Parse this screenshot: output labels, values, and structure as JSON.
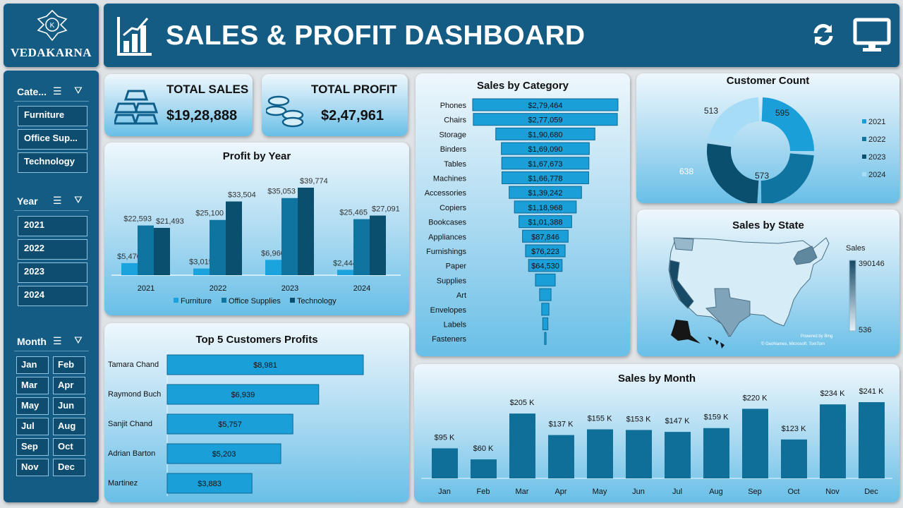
{
  "brand": {
    "name": "VEDAKARNA",
    "logo_letter": "K"
  },
  "header": {
    "title": "SALES & PROFIT DASHBOARD",
    "icons": [
      "bar-chart-icon",
      "refresh-icon",
      "monitor-icon"
    ]
  },
  "slicers": {
    "category": {
      "label": "Cate...",
      "items": [
        "Furniture",
        "Office Sup...",
        "Technology"
      ]
    },
    "year": {
      "label": "Year",
      "items": [
        "2021",
        "2022",
        "2023",
        "2024"
      ]
    },
    "month": {
      "label": "Month",
      "items": [
        "Jan",
        "Feb",
        "Mar",
        "Apr",
        "May",
        "Jun",
        "Jul",
        "Aug",
        "Sep",
        "Oct",
        "Nov",
        "Dec"
      ]
    }
  },
  "kpis": {
    "sales_label": "TOTAL SALES",
    "sales_value": "$19,28,888",
    "profit_label": "TOTAL PROFIT",
    "profit_value": "$2,47,961"
  },
  "colors": {
    "furniture": "#1aa3dc",
    "office": "#0f74a0",
    "technology": "#0b4f6e",
    "month_bar": "#0f6f99",
    "category_bar": "#1a9fd9"
  },
  "chart_data": [
    {
      "type": "bar",
      "title": "Profit by Year",
      "categories": [
        "2021",
        "2022",
        "2023",
        "2024"
      ],
      "series": [
        {
          "name": "Furniture",
          "values": [
            5470,
            3015,
            6960,
            2444
          ],
          "labels": [
            "$5,470",
            "$3,015",
            "$6,960",
            "$2,444"
          ]
        },
        {
          "name": "Office Supplies",
          "values": [
            22593,
            25100,
            35053,
            25465
          ],
          "labels": [
            "$22,593",
            "$25,100",
            "$35,053",
            "$25,465"
          ]
        },
        {
          "name": "Technology",
          "values": [
            21493,
            33504,
            39774,
            27091
          ],
          "labels": [
            "$21,493",
            "$33,504",
            "$39,774",
            "$27,091"
          ]
        }
      ],
      "legend": "bottom"
    },
    {
      "type": "bar",
      "title": "Top 5 Customers Profits",
      "orientation": "horizontal",
      "categories": [
        "Tamara Chand",
        "Raymond Buch",
        "Sanjit Chand",
        "Adrian Barton",
        "Martinez"
      ],
      "values": [
        8981,
        6939,
        5757,
        5203,
        3883
      ],
      "labels": [
        "$8,981",
        "$6,939",
        "$5,757",
        "$5,203",
        "$3,883"
      ]
    },
    {
      "type": "bar",
      "title": "Sales by Category",
      "orientation": "funnel",
      "categories": [
        "Phones",
        "Chairs",
        "Storage",
        "Binders",
        "Tables",
        "Machines",
        "Accessories",
        "Copiers",
        "Bookcases",
        "Appliances",
        "Furnishings",
        "Paper",
        "Supplies",
        "Art",
        "Envelopes",
        "Labels",
        "Fasteners"
      ],
      "values": [
        279464,
        277059,
        190680,
        169090,
        167673,
        166778,
        139242,
        118968,
        101388,
        87846,
        76223,
        64530,
        38000,
        22000,
        14000,
        10000,
        3000
      ],
      "labels": [
        "$2,79,464",
        "$2,77,059",
        "$1,90,680",
        "$1,69,090",
        "$1,67,673",
        "$1,66,778",
        "$1,39,242",
        "$1,18,968",
        "$1,01,388",
        "$87,846",
        "$76,223",
        "$64,530",
        "",
        "",
        "",
        "",
        ""
      ]
    },
    {
      "type": "pie",
      "title": "Customer Count",
      "style": "donut",
      "categories": [
        "2021",
        "2022",
        "2023",
        "2024"
      ],
      "values": [
        595,
        573,
        638,
        513
      ],
      "colors": [
        "#1a9fd9",
        "#0f74a0",
        "#0b4f6e",
        "#a6dcf5"
      ],
      "legend": "right"
    },
    {
      "type": "map",
      "title": "Sales by State",
      "legend_title": "Sales",
      "range": [
        536,
        390146
      ],
      "range_labels": [
        "390146",
        "536"
      ],
      "credit1": "Powered by Bing",
      "credit2": "© GeoNames, Microsoft, TomTom"
    },
    {
      "type": "bar",
      "title": "Sales by Month",
      "categories": [
        "Jan",
        "Feb",
        "Mar",
        "Apr",
        "May",
        "Jun",
        "Jul",
        "Aug",
        "Sep",
        "Oct",
        "Nov",
        "Dec"
      ],
      "values": [
        95,
        60,
        205,
        137,
        155,
        153,
        147,
        159,
        220,
        123,
        234,
        241
      ],
      "unit": "$K",
      "labels": [
        "$95 K",
        "$60 K",
        "$205 K",
        "$137 K",
        "$155 K",
        "$153 K",
        "$147 K",
        "$159 K",
        "$220 K",
        "$123 K",
        "$234 K",
        "$241 K"
      ]
    }
  ]
}
